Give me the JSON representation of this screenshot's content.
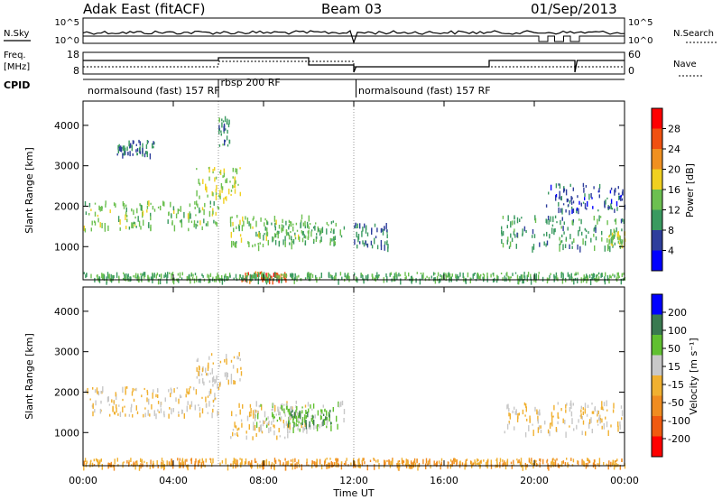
{
  "header": {
    "station": "Adak East (fitACF)",
    "beam": "Beam 03",
    "date": "01/Sep/2013"
  },
  "side_labels": {
    "nsky": "N.Sky",
    "freq_line1": "Freq.",
    "freq_line2": "[MHz]",
    "cpid": "CPID",
    "nsearch": "N.Search",
    "nave": "Nave"
  },
  "small_axes": {
    "noise_left_ticks": [
      "10^5",
      "10^0"
    ],
    "noise_right_ticks": [
      "10^5",
      "10^0"
    ],
    "freq_left_ticks": [
      "18",
      "8"
    ],
    "nave_right_ticks": [
      "60",
      "0"
    ]
  },
  "cpid_labels": [
    {
      "text": "normalsound (fast) 157 RF",
      "start_hour": 0.2
    },
    {
      "text": "rbsp 200 RF",
      "start_hour": 6.1
    },
    {
      "text": "normalsound (fast) 157 RF",
      "start_hour": 12.2
    }
  ],
  "chart_data": [
    {
      "type": "heatmap",
      "title": "",
      "xlabel": "",
      "ylabel": "Slant Range [km]",
      "xlim": [
        0,
        24
      ],
      "ylim": [
        180,
        4600
      ],
      "yticks": [
        "4000",
        "3000",
        "2000",
        "1000"
      ],
      "colorbar": {
        "label": "Power [dB]",
        "range": [
          0,
          32
        ],
        "tick_labels": [
          "28",
          "24",
          "20",
          "16",
          "12",
          "8",
          "4"
        ]
      },
      "bands": [
        {
          "start_hour": 0.0,
          "end_hour": 6.0,
          "range_start": 1450,
          "range_end": 2150,
          "value": 14
        },
        {
          "start_hour": 1.5,
          "end_hour": 3.2,
          "range_start": 3300,
          "range_end": 3650,
          "value": 8
        },
        {
          "start_hour": 5.0,
          "end_hour": 7.0,
          "range_start": 2200,
          "range_end": 3000,
          "value": 16
        },
        {
          "start_hour": 6.0,
          "end_hour": 6.5,
          "range_start": 3500,
          "range_end": 4300,
          "value": 10
        },
        {
          "start_hour": 6.5,
          "end_hour": 10.0,
          "range_start": 1000,
          "range_end": 1800,
          "value": 14
        },
        {
          "start_hour": 8.0,
          "end_hour": 11.6,
          "range_start": 1100,
          "range_end": 1650,
          "value": 12
        },
        {
          "start_hour": 7.0,
          "end_hour": 9.0,
          "range_start": 200,
          "range_end": 400,
          "value": 26
        },
        {
          "start_hour": 12.0,
          "end_hour": 13.5,
          "range_start": 1000,
          "range_end": 1600,
          "value": 8
        },
        {
          "start_hour": 18.5,
          "end_hour": 24.0,
          "range_start": 1000,
          "range_end": 1800,
          "value": 10
        },
        {
          "start_hour": 20.5,
          "end_hour": 24.0,
          "range_start": 1900,
          "range_end": 2600,
          "value": 6
        },
        {
          "start_hour": 23.2,
          "end_hour": 24.0,
          "range_start": 1000,
          "range_end": 1400,
          "value": 16
        },
        {
          "start_hour": 0.0,
          "end_hour": 24.0,
          "range_start": 200,
          "range_end": 380,
          "value": 12
        }
      ]
    },
    {
      "type": "heatmap",
      "title": "",
      "xlabel": "Time UT",
      "ylabel": "Slant Range [km]",
      "xlim": [
        0,
        24
      ],
      "ylim": [
        180,
        4600
      ],
      "xticks": [
        "00:00",
        "04:00",
        "08:00",
        "12:00",
        "16:00",
        "20:00",
        "00:00"
      ],
      "yticks": [
        "4000",
        "3000",
        "2000",
        "1000"
      ],
      "colorbar": {
        "label": "Velocity [m s⁻¹]",
        "range": [
          -250,
          250
        ],
        "tick_labels": [
          "200",
          "100",
          "50",
          "15",
          "-15",
          "-50",
          "-100",
          "-200"
        ]
      },
      "bands": [
        {
          "start_hour": 0.0,
          "end_hour": 6.0,
          "range_start": 1450,
          "range_end": 2150,
          "value": 0
        },
        {
          "start_hour": 5.0,
          "end_hour": 7.0,
          "range_start": 2200,
          "range_end": 3000,
          "value": 0
        },
        {
          "start_hour": 6.5,
          "end_hour": 10.0,
          "range_start": 900,
          "range_end": 1800,
          "value": 0
        },
        {
          "start_hour": 7.5,
          "end_hour": 11.6,
          "range_start": 1100,
          "range_end": 1800,
          "value": 60
        },
        {
          "start_hour": 9.0,
          "end_hour": 11.0,
          "range_start": 1200,
          "range_end": 1600,
          "value": 120
        },
        {
          "start_hour": 18.5,
          "end_hour": 24.0,
          "range_start": 1000,
          "range_end": 1800,
          "value": 0
        },
        {
          "start_hour": 0.0,
          "end_hour": 24.0,
          "range_start": 200,
          "range_end": 380,
          "value": -60
        }
      ]
    }
  ],
  "colors": {
    "power_scale": [
      "#0000ff",
      "#2e3e9c",
      "#3a9a60",
      "#6cc050",
      "#f0d020",
      "#f09020",
      "#f05010",
      "#ff0000"
    ],
    "velocity_scale": [
      "#ff0000",
      "#f05a10",
      "#f08c20",
      "#f0b030",
      "#c8c8c8",
      "#60c030",
      "#3a7a50",
      "#0000ff"
    ]
  }
}
